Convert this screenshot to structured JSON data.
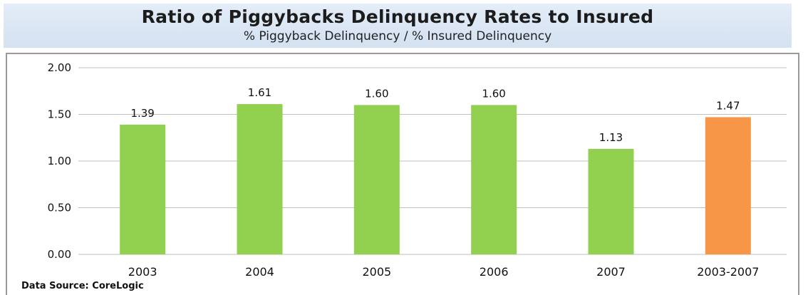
{
  "header": {
    "title": "Ratio of Piggybacks Delinquency Rates to Insured",
    "subtitle": "% Piggyback Delinquency / % Insured Delinquency"
  },
  "source": "Data Source: CoreLogic",
  "colors": {
    "bar_default": "#92d050",
    "bar_highlight": "#f79646",
    "grid": "#bfbfbf"
  },
  "chart_data": {
    "type": "bar",
    "title": "Ratio of Piggybacks Delinquency Rates to Insured",
    "subtitle": "% Piggyback Delinquency / % Insured Delinquency",
    "categories": [
      "2003",
      "2004",
      "2005",
      "2006",
      "2007",
      "2003-2007"
    ],
    "values": [
      1.39,
      1.61,
      1.6,
      1.6,
      1.13,
      1.47
    ],
    "value_labels": [
      "1.39",
      "1.61",
      "1.60",
      "1.60",
      "1.13",
      "1.47"
    ],
    "bar_colors": [
      "green",
      "green",
      "green",
      "green",
      "green",
      "orange"
    ],
    "ylim": [
      0,
      2
    ],
    "yticks": [
      "0.00",
      "0.50",
      "1.00",
      "1.50",
      "2.00"
    ],
    "grid": true,
    "legend": "none"
  }
}
